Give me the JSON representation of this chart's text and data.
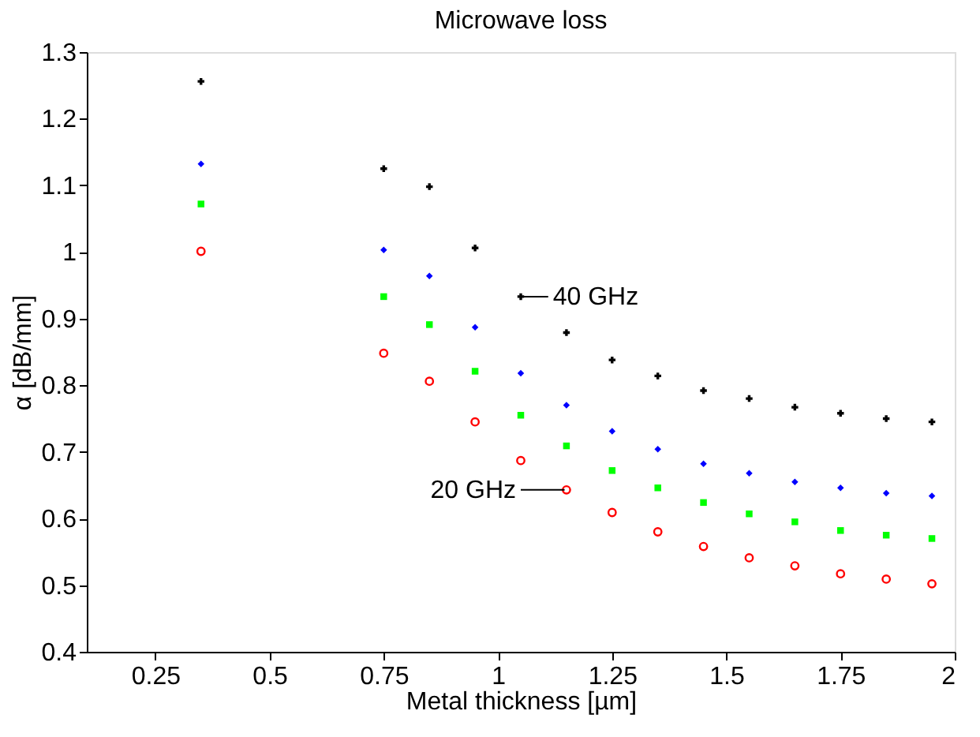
{
  "chart_data": {
    "type": "scatter",
    "title": "Microwave loss",
    "xlabel": "Metal thickness [µm]",
    "ylabel": "α [dB/mm]",
    "x": [
      0.35,
      0.75,
      0.85,
      0.95,
      1.05,
      1.15,
      1.25,
      1.35,
      1.45,
      1.55,
      1.65,
      1.75,
      1.85,
      1.95
    ],
    "series": [
      {
        "color": "#000000",
        "marker": "cross",
        "values": [
          1.256,
          1.125,
          1.098,
          1.006,
          0.933,
          0.879,
          0.838,
          0.814,
          0.792,
          0.78,
          0.767,
          0.758,
          0.75,
          0.745
        ]
      },
      {
        "color": "#0000ff",
        "marker": "diamond",
        "values": [
          1.132,
          1.003,
          0.964,
          0.887,
          0.818,
          0.77,
          0.731,
          0.704,
          0.682,
          0.668,
          0.655,
          0.646,
          0.638,
          0.634
        ]
      },
      {
        "color": "#00ff00",
        "marker": "square",
        "values": [
          1.072,
          0.933,
          0.891,
          0.821,
          0.755,
          0.709,
          0.672,
          0.646,
          0.624,
          0.607,
          0.595,
          0.582,
          0.575,
          0.57
        ]
      },
      {
        "color": "#ff0000",
        "marker": "circle",
        "values": [
          1.001,
          0.848,
          0.806,
          0.745,
          0.687,
          0.643,
          0.609,
          0.58,
          0.558,
          0.541,
          0.529,
          0.517,
          0.509,
          0.502
        ]
      }
    ],
    "annotations": [
      {
        "text": "40 GHz",
        "x": 1.05,
        "y": 0.933
      },
      {
        "text": "20 GHz",
        "x": 1.15,
        "y": 0.643
      }
    ],
    "xlim": [
      0.1,
      2
    ],
    "xticks": [
      0.25,
      0.5,
      0.75,
      1,
      1.25,
      1.5,
      1.75,
      2
    ],
    "ylim": [
      0.4,
      1.3
    ],
    "yticks": [
      0.4,
      0.5,
      0.6,
      0.7,
      0.8,
      0.9,
      1,
      1.1,
      1.2,
      1.3
    ],
    "grid": false
  }
}
